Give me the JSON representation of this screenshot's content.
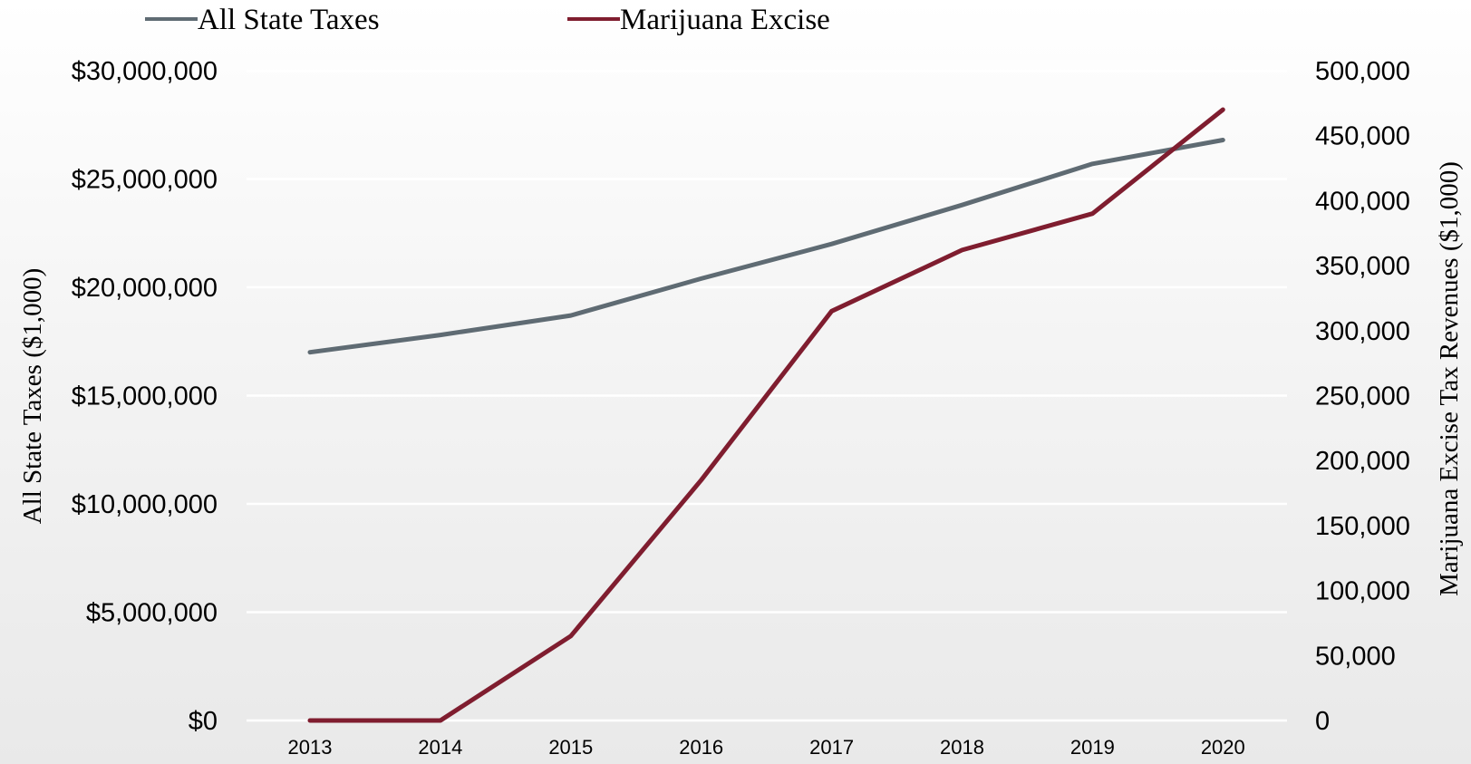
{
  "chart_data": {
    "type": "line",
    "x": [
      "2013",
      "2014",
      "2015",
      "2016",
      "2017",
      "2018",
      "2019",
      "2020"
    ],
    "series": [
      {
        "name": "All State Taxes",
        "axis": "left",
        "color": "#5f6b73",
        "values": [
          17000000,
          17800000,
          18700000,
          20400000,
          22000000,
          23800000,
          25700000,
          26800000
        ]
      },
      {
        "name": "Marijuana Excise",
        "axis": "right",
        "color": "#7f1d2f",
        "values": [
          0,
          0,
          65000,
          185000,
          315000,
          362000,
          390000,
          470000
        ]
      }
    ],
    "ylabel_left": "All State Taxes ($1,000)",
    "ylabel_right": "Marijuana Excise Tax Revenues ($1,000)",
    "ylim_left": [
      0,
      30000000
    ],
    "ylim_right": [
      0,
      500000
    ],
    "yticks_left": [
      "$0",
      "$5,000,000",
      "$10,000,000",
      "$15,000,000",
      "$20,000,000",
      "$25,000,000",
      "$30,000,000"
    ],
    "yticks_right": [
      "0",
      "50,000",
      "100,000",
      "150,000",
      "200,000",
      "250,000",
      "300,000",
      "350,000",
      "400,000",
      "450,000",
      "500,000"
    ],
    "grid": true,
    "legend_position": "top-left"
  }
}
